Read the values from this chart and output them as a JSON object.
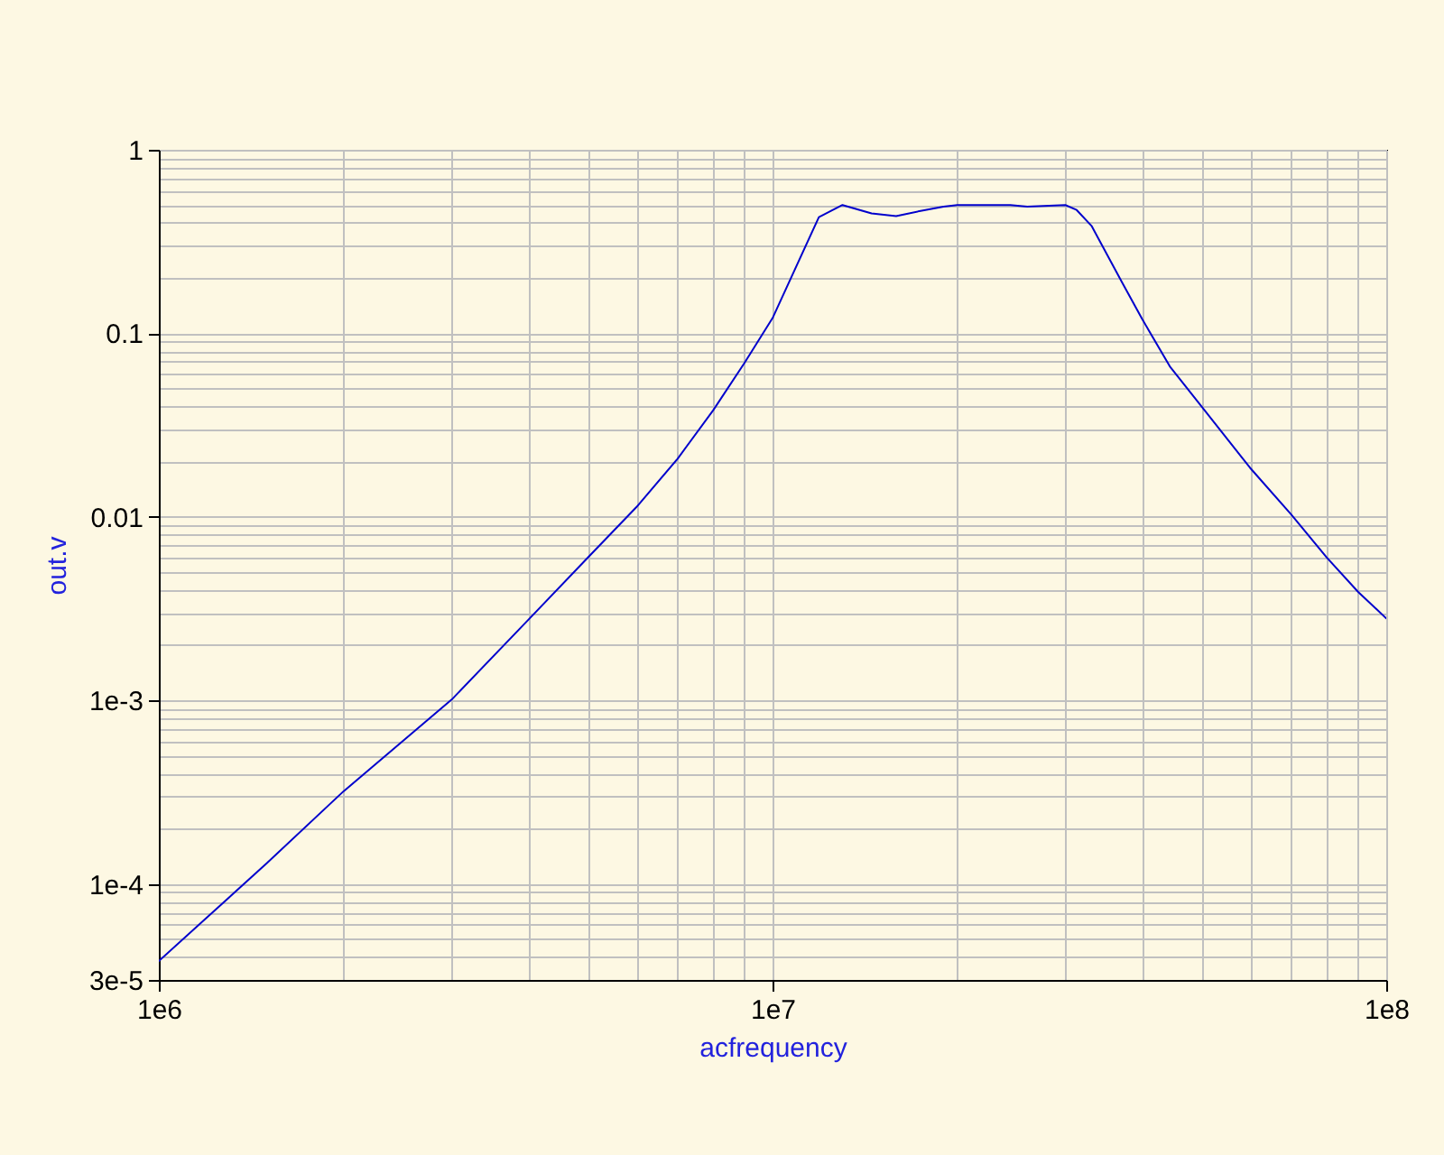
{
  "chart_data": {
    "type": "line",
    "xlabel": "acfrequency",
    "ylabel": "out.v",
    "x": [
      1000000,
      1500000,
      2000000,
      3000000,
      4000000,
      5000000,
      6000000,
      7000000,
      8000000,
      9000000,
      10000000,
      11900000,
      13000000,
      14500000,
      15900000,
      17500000,
      19000000,
      20000000,
      24400000,
      26000000,
      30000000,
      31300000,
      33100000,
      37100000,
      40000000,
      44400000,
      50000000,
      60000000,
      70000000,
      80000000,
      90000000,
      100000000
    ],
    "series": [
      {
        "color": "#0000cc",
        "values": [
          3.8e-05,
          0.00013,
          0.00032,
          0.00101,
          0.00275,
          0.006,
          0.0113,
          0.0207,
          0.038,
          0.069,
          0.121,
          0.43,
          0.5,
          0.45,
          0.435,
          0.466,
          0.49,
          0.5,
          0.5,
          0.49,
          0.5,
          0.47,
          0.385,
          0.19,
          0.12,
          0.066,
          0.04,
          0.0185,
          0.0103,
          0.006,
          0.0039,
          0.0028
        ]
      }
    ],
    "xlim": [
      1000000,
      100000000
    ],
    "ylim": [
      3e-05,
      1
    ],
    "xticks": [
      {
        "value": 1000000,
        "label": "1e6"
      },
      {
        "value": 2000000,
        "label": null
      },
      {
        "value": 3000000,
        "label": null
      },
      {
        "value": 4000000,
        "label": null
      },
      {
        "value": 5000000,
        "label": null
      },
      {
        "value": 6000000,
        "label": null
      },
      {
        "value": 7000000,
        "label": null
      },
      {
        "value": 8000000,
        "label": null
      },
      {
        "value": 9000000,
        "label": null
      },
      {
        "value": 10000000,
        "label": "1e7"
      },
      {
        "value": 20000000,
        "label": null
      },
      {
        "value": 30000000,
        "label": null
      },
      {
        "value": 40000000,
        "label": null
      },
      {
        "value": 50000000,
        "label": null
      },
      {
        "value": 60000000,
        "label": null
      },
      {
        "value": 70000000,
        "label": null
      },
      {
        "value": 80000000,
        "label": null
      },
      {
        "value": 90000000,
        "label": null
      },
      {
        "value": 100000000,
        "label": "1e8"
      }
    ],
    "yticks": [
      {
        "value": 3e-05,
        "label": "3e-5"
      },
      {
        "value": 4e-05,
        "label": null
      },
      {
        "value": 5e-05,
        "label": null
      },
      {
        "value": 6e-05,
        "label": null
      },
      {
        "value": 7e-05,
        "label": null
      },
      {
        "value": 8e-05,
        "label": null
      },
      {
        "value": 9e-05,
        "label": null
      },
      {
        "value": 0.0001,
        "label": "1e-4"
      },
      {
        "value": 0.0002,
        "label": null
      },
      {
        "value": 0.0003,
        "label": null
      },
      {
        "value": 0.0004,
        "label": null
      },
      {
        "value": 0.0005,
        "label": null
      },
      {
        "value": 0.0006,
        "label": null
      },
      {
        "value": 0.0007,
        "label": null
      },
      {
        "value": 0.0008,
        "label": null
      },
      {
        "value": 0.0009,
        "label": null
      },
      {
        "value": 0.001,
        "label": "1e-3"
      },
      {
        "value": 0.002,
        "label": null
      },
      {
        "value": 0.003,
        "label": null
      },
      {
        "value": 0.004,
        "label": null
      },
      {
        "value": 0.005,
        "label": null
      },
      {
        "value": 0.006,
        "label": null
      },
      {
        "value": 0.007,
        "label": null
      },
      {
        "value": 0.008,
        "label": null
      },
      {
        "value": 0.009,
        "label": null
      },
      0.01,
      {
        "value": 0.02,
        "label": null
      },
      {
        "value": 0.03,
        "label": null
      },
      {
        "value": 0.04,
        "label": null
      },
      {
        "value": 0.05,
        "label": null
      },
      {
        "value": 0.06,
        "label": null
      },
      {
        "value": 0.07,
        "label": null
      },
      {
        "value": 0.08,
        "label": null
      },
      {
        "value": 0.09,
        "label": null
      },
      0.1,
      {
        "value": 0.2,
        "label": null
      },
      {
        "value": 0.3,
        "label": null
      },
      {
        "value": 0.4,
        "label": null
      },
      {
        "value": 0.5,
        "label": null
      },
      {
        "value": 0.6,
        "label": null
      },
      {
        "value": 0.7,
        "label": null
      },
      {
        "value": 0.8,
        "label": null
      },
      {
        "value": 0.9,
        "label": null
      },
      1
    ],
    "log": "xy",
    "grid": true,
    "line_style": "solid"
  }
}
